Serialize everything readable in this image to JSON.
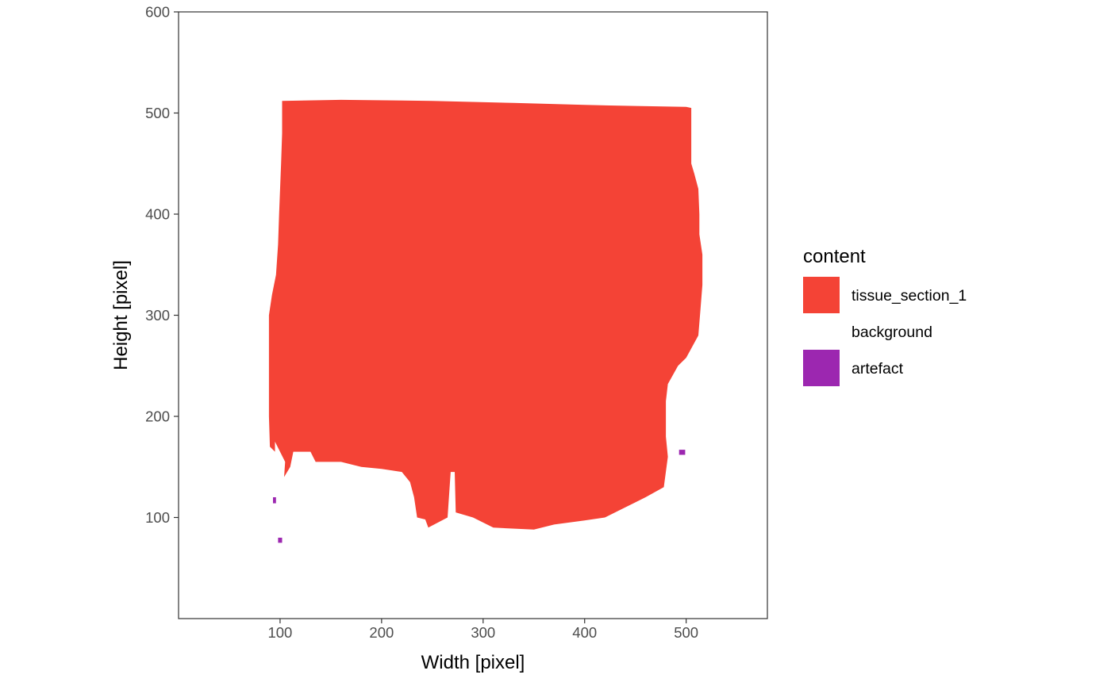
{
  "chart_data": {
    "type": "heatmap",
    "xlabel": "Width [pixel]",
    "ylabel": "Height [pixel]",
    "xlim": [
      0,
      580
    ],
    "ylim": [
      0,
      600
    ],
    "x_ticks": [
      100,
      200,
      300,
      400,
      500
    ],
    "y_ticks": [
      100,
      200,
      300,
      400,
      500,
      600
    ],
    "grid": false,
    "legend": {
      "title": "content",
      "placement": "right",
      "entries": [
        {
          "label": "tissue_section_1",
          "color": "#F44336"
        },
        {
          "label": "background",
          "color": "#FFFFFF"
        },
        {
          "label": "artefact",
          "color": "#9C27B0"
        }
      ]
    },
    "regions": [
      {
        "content": "tissue_section_1",
        "outline": [
          [
            102,
            512
          ],
          [
            160,
            513
          ],
          [
            250,
            512
          ],
          [
            330,
            510
          ],
          [
            400,
            508
          ],
          [
            450,
            507
          ],
          [
            500,
            506
          ],
          [
            505,
            505
          ],
          [
            505,
            450
          ],
          [
            508,
            440
          ],
          [
            512,
            425
          ],
          [
            513,
            400
          ],
          [
            513,
            380
          ],
          [
            516,
            360
          ],
          [
            516,
            330
          ],
          [
            514,
            305
          ],
          [
            512,
            280
          ],
          [
            500,
            258
          ],
          [
            492,
            250
          ],
          [
            482,
            232
          ],
          [
            480,
            215
          ],
          [
            480,
            180
          ],
          [
            482,
            160
          ],
          [
            478,
            130
          ],
          [
            460,
            120
          ],
          [
            440,
            110
          ],
          [
            420,
            100
          ],
          [
            400,
            97
          ],
          [
            370,
            93
          ],
          [
            350,
            88
          ],
          [
            310,
            90
          ],
          [
            290,
            100
          ],
          [
            273,
            105
          ],
          [
            272,
            145
          ],
          [
            268,
            145
          ],
          [
            265,
            100
          ],
          [
            246,
            90
          ],
          [
            243,
            98
          ],
          [
            235,
            100
          ],
          [
            232,
            120
          ],
          [
            228,
            135
          ],
          [
            220,
            145
          ],
          [
            200,
            148
          ],
          [
            180,
            150
          ],
          [
            160,
            155
          ],
          [
            135,
            155
          ],
          [
            130,
            165
          ],
          [
            113,
            165
          ],
          [
            110,
            150
          ],
          [
            104,
            140
          ],
          [
            105,
            155
          ],
          [
            95,
            175
          ],
          [
            95,
            165
          ],
          [
            90,
            170
          ],
          [
            89,
            200
          ],
          [
            89,
            260
          ],
          [
            89,
            300
          ],
          [
            92,
            320
          ],
          [
            96,
            340
          ],
          [
            98,
            370
          ],
          [
            99,
            400
          ],
          [
            101,
            450
          ],
          [
            102,
            480
          ],
          [
            102,
            512
          ]
        ]
      },
      {
        "content": "artefact",
        "outline": [
          [
            93,
            120
          ],
          [
            96,
            120
          ],
          [
            96,
            114
          ],
          [
            93,
            114
          ]
        ]
      },
      {
        "content": "artefact",
        "outline": [
          [
            98,
            80
          ],
          [
            102,
            80
          ],
          [
            102,
            75
          ],
          [
            98,
            75
          ]
        ]
      },
      {
        "content": "artefact",
        "outline": [
          [
            493,
            167
          ],
          [
            499,
            167
          ],
          [
            499,
            162
          ],
          [
            493,
            162
          ]
        ]
      }
    ]
  }
}
